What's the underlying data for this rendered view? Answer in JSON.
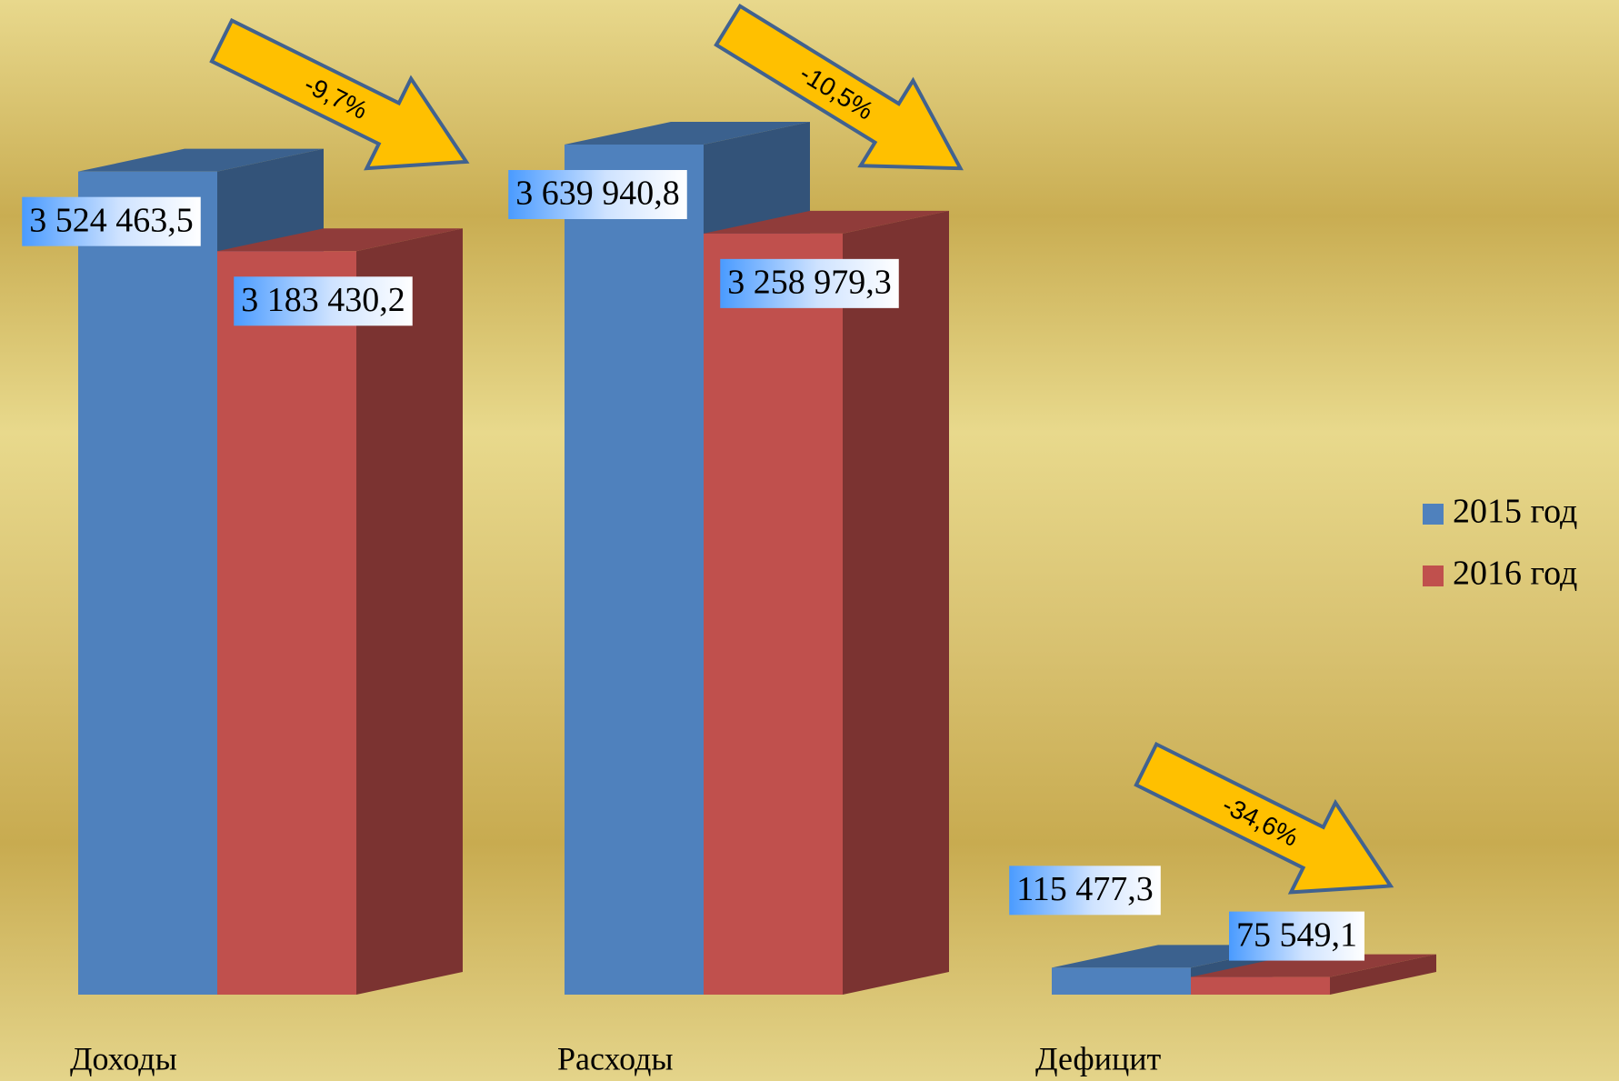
{
  "chart_data": {
    "type": "bar3d",
    "categories": [
      "Доходы",
      "Расходы",
      "Дефицит"
    ],
    "series": [
      {
        "name": "2015 год",
        "color": "#4f81bd",
        "values": [
          3524463.5,
          3639940.8,
          115477.3
        ],
        "value_labels": [
          "3 524 463,5",
          "3 639 940,8",
          "115 477,3"
        ]
      },
      {
        "name": "2016 год",
        "color": "#c0504d",
        "values": [
          3183430.2,
          3258979.3,
          75549.1
        ],
        "value_labels": [
          "3 183 430,2",
          "3 258 979,3",
          "75 549,1"
        ]
      }
    ],
    "annotations": [
      "-9,7%",
      "-10,5%",
      "-34,6%"
    ],
    "legend": "right"
  }
}
